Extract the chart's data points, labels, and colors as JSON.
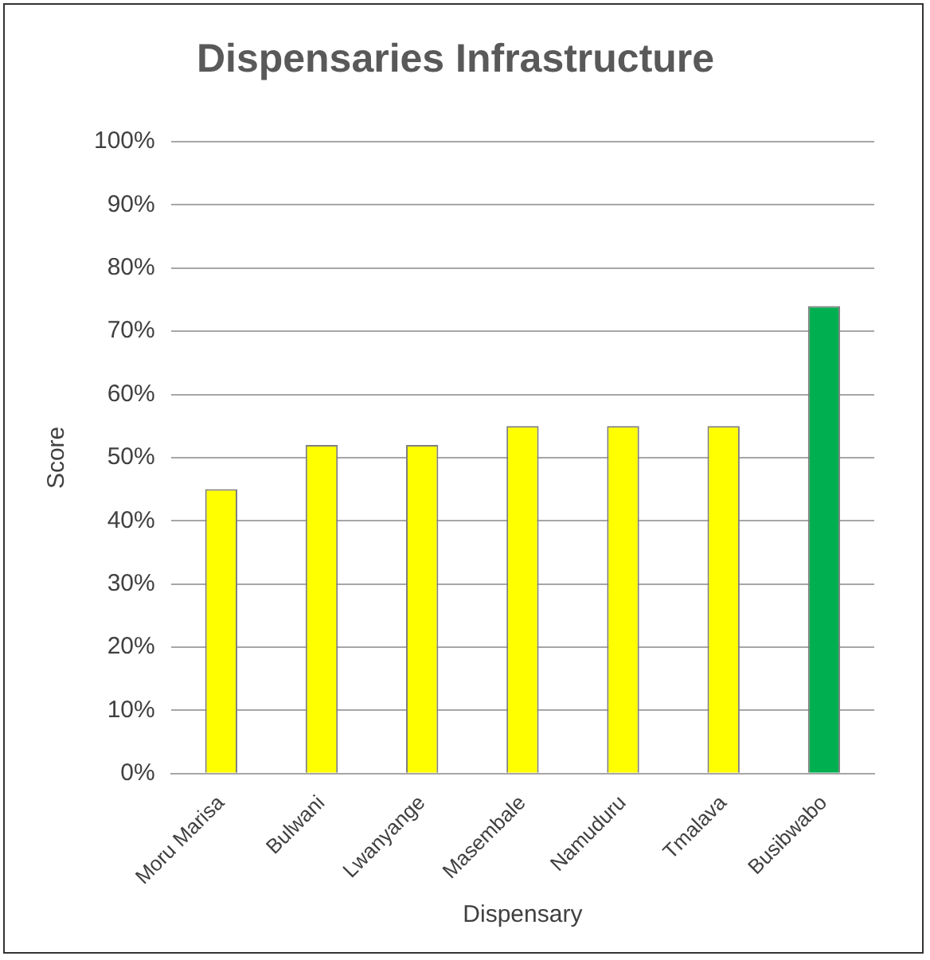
{
  "chart_data": {
    "type": "bar",
    "title": "Dispensaries Infrastructure",
    "xlabel": "Dispensary",
    "ylabel": "Score",
    "categories": [
      "Moru Marisa",
      "Bulwani",
      "Lwanyange",
      "Masembale",
      "Namuduru",
      "Tmalava",
      "Busibwabo"
    ],
    "values": [
      45,
      52,
      52,
      55,
      55,
      55,
      74
    ],
    "colors": [
      "#ffff00",
      "#ffff00",
      "#ffff00",
      "#ffff00",
      "#ffff00",
      "#ffff00",
      "#00b050"
    ],
    "ylim": [
      0,
      100
    ],
    "yticks": [
      {
        "value": 0,
        "label": "0%"
      },
      {
        "value": 10,
        "label": "10%"
      },
      {
        "value": 20,
        "label": "20%"
      },
      {
        "value": 30,
        "label": "30%"
      },
      {
        "value": 40,
        "label": "40%"
      },
      {
        "value": 50,
        "label": "50%"
      },
      {
        "value": 60,
        "label": "60%"
      },
      {
        "value": 70,
        "label": "70%"
      },
      {
        "value": 80,
        "label": "80%"
      },
      {
        "value": 90,
        "label": "90%"
      },
      {
        "value": 100,
        "label": "100%"
      }
    ],
    "grid": "y",
    "legend": false
  }
}
